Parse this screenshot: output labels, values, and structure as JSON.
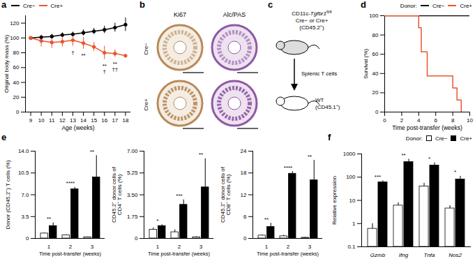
{
  "chart_data": [
    {
      "panel": "a",
      "type": "line",
      "marker": "circle",
      "legend": "top-left",
      "x_label": "Age (weeks)",
      "y_label": "Original body mass (%)",
      "x": [
        9,
        10,
        11,
        12,
        13,
        14,
        15,
        16,
        17,
        18
      ],
      "xlim": [
        8.5,
        18.5
      ],
      "xticks": [
        9,
        10,
        11,
        12,
        13,
        14,
        15,
        16,
        17,
        18
      ],
      "ylim": [
        0,
        130
      ],
      "yticks": [
        0,
        20,
        40,
        60,
        80,
        100,
        120
      ],
      "series": [
        {
          "name": "Cre−",
          "color": "#000000",
          "values": [
            100,
            101,
            102,
            104,
            105,
            107,
            109,
            111,
            114,
            118
          ],
          "errors": [
            0,
            2,
            3,
            3,
            3,
            4,
            4,
            5,
            6,
            9
          ]
        },
        {
          "name": "Cre+",
          "color": "#e8562f",
          "values": [
            100,
            96,
            94,
            95,
            97,
            93,
            88,
            80,
            79,
            76
          ],
          "errors": [
            0,
            8,
            8,
            7,
            8,
            8,
            6,
            9,
            5,
            2
          ]
        }
      ],
      "annotations": [
        {
          "x": 13,
          "series": "Cre+",
          "text": "†"
        },
        {
          "x": 14,
          "series": "Cre+",
          "text": "**"
        },
        {
          "x": 16,
          "series": "Cre+",
          "text": "**"
        },
        {
          "x": 16,
          "series": "Cre+",
          "text": "†"
        },
        {
          "x": 17,
          "series": "Cre+",
          "text": "**"
        },
        {
          "x": 17,
          "series": "Cre+",
          "text": "††"
        }
      ]
    },
    {
      "panel": "d",
      "type": "line",
      "line_style": "step",
      "legend": "top-right",
      "legend_title": "Donor:",
      "x_label": "Time post-transfer (weeks)",
      "y_label": "Survival (%)",
      "xlim": [
        0,
        10
      ],
      "xticks": [
        0,
        2,
        4,
        6,
        8,
        10
      ],
      "ylim": [
        0,
        100
      ],
      "yticks": [
        0,
        20,
        40,
        60,
        80,
        100
      ],
      "series": [
        {
          "name": "Cre−",
          "color": "#000000",
          "x": [
            0,
            10
          ],
          "values": [
            100,
            100
          ]
        },
        {
          "name": "Cre+",
          "color": "#e8562f",
          "x": [
            0,
            4,
            4.3,
            5,
            8,
            8.5,
            9
          ],
          "values": [
            100,
            87.5,
            62.5,
            37.5,
            25,
            12.5,
            0
          ]
        }
      ]
    },
    {
      "panel": "e",
      "type": "bar",
      "x_label": "Time post-transfer (weeks)",
      "y_label": "Donor (CD45.2⁺) T cells (%)",
      "categories": [
        "1",
        "2",
        "3"
      ],
      "ylim": [
        0,
        14
      ],
      "yticks": [
        0,
        3.5,
        {
          "value": 7,
          "label": "7.0"
        },
        10.5,
        {
          "value": 14,
          "label": "14.0"
        }
      ],
      "series": [
        {
          "name": "Cre−",
          "color": "#ffffff",
          "values": [
            0.8,
            0.5,
            0.2
          ],
          "errors": [
            0.1,
            0.1,
            0.05
          ]
        },
        {
          "name": "Cre+",
          "color": "#000000",
          "values": [
            2.0,
            7.9,
            9.8
          ],
          "errors": [
            0.5,
            0.3,
            3.5
          ]
        }
      ],
      "annotations": [
        "**",
        "****",
        "**"
      ]
    },
    {
      "type": "bar",
      "x_label": "Time post-transfer (weeks)",
      "y_label": "CD45.2⁺ donor cells of CD4⁺ T cells (%)",
      "categories": [
        "1",
        "2",
        "3"
      ],
      "ylim": [
        0,
        7
      ],
      "yticks": [
        0,
        1.75,
        {
          "value": 3.5,
          "label": "3.50"
        },
        5.25,
        {
          "value": 7,
          "label": "7.00"
        }
      ],
      "series": [
        {
          "name": "Cre−",
          "color": "#ffffff",
          "values": [
            0.7,
            0.5,
            0.1
          ],
          "errors": [
            0.15,
            0.2,
            0.05
          ]
        },
        {
          "name": "Cre+",
          "color": "#000000",
          "values": [
            1.0,
            2.7,
            4.1
          ],
          "errors": [
            0.1,
            0.4,
            2.3
          ]
        }
      ],
      "annotations": [
        "*",
        "***",
        "**"
      ]
    },
    {
      "type": "bar",
      "x_label": "Time post-transfer (weeks)",
      "y_label": "CD45.2⁺ donor cells of CD8⁺ T cells (%)",
      "categories": [
        "1",
        "2",
        "3"
      ],
      "ylim": [
        0,
        24
      ],
      "yticks": [
        0,
        6,
        12,
        18,
        24
      ],
      "series": [
        {
          "name": "Cre−",
          "color": "#ffffff",
          "values": [
            0.8,
            0.6,
            0.2
          ],
          "errors": [
            0.2,
            0.3,
            0.1
          ]
        },
        {
          "name": "Cre+",
          "color": "#000000",
          "values": [
            3.2,
            17.8,
            16.0
          ],
          "errors": [
            1.0,
            0.6,
            5.5
          ]
        }
      ],
      "annotations": [
        "**",
        "****",
        "**"
      ]
    },
    {
      "panel": "f",
      "type": "bar",
      "log": "y",
      "legend": "top-right",
      "legend_title": "Donor:",
      "y_label": "Relative expression",
      "categories": [
        "Gzmb",
        "Ifng",
        "Tnfa",
        "Nos2"
      ],
      "ylim": [
        0.1,
        1000
      ],
      "yticks": [
        0.1,
        1,
        10,
        100,
        1000
      ],
      "series": [
        {
          "name": "Cre−",
          "color": "#ffffff",
          "values": [
            0.6,
            6,
            40,
            4.5
          ],
          "errors": [
            0.4,
            2,
            15,
            1.5
          ]
        },
        {
          "name": "Cre+",
          "color": "#000000",
          "values": [
            60,
            450,
            320,
            80
          ],
          "errors": [
            10,
            150,
            100,
            30
          ]
        }
      ],
      "annotations": [
        "***",
        "**",
        "*",
        "*"
      ]
    }
  ],
  "panel_b": {
    "panel": "b",
    "columns": [
      "Ki67",
      "Alc/PAS"
    ],
    "rows": [
      "Cre−",
      "Cre+"
    ]
  },
  "panel_c": {
    "panel": "c",
    "donor": {
      "text": "CD11c-",
      "gene": "Tgfbr1",
      "superscript": "fl/fl"
    },
    "donor_lines": [
      "Cre− or Cre+",
      "(CD45.2⁺)"
    ],
    "transfer": "Splenic T cells",
    "recipient_lines": [
      "WT",
      "(CD45.1⁺)"
    ]
  }
}
